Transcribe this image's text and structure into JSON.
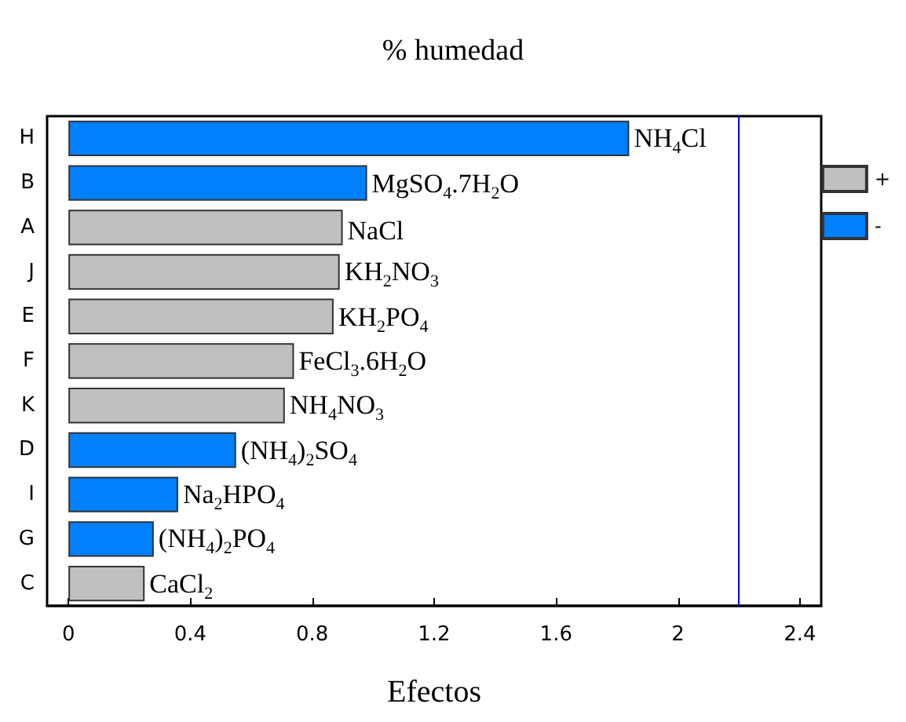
{
  "chart_data": {
    "type": "bar",
    "orientation": "horizontal",
    "title": "% humedad",
    "xlabel": "Efectos",
    "categories": [
      "H",
      "B",
      "A",
      "J",
      "E",
      "F",
      "K",
      "D",
      "I",
      "G",
      "C"
    ],
    "series": [
      {
        "name": "+",
        "color": "#c0c0c0",
        "values": [
          null,
          null,
          0.9,
          0.89,
          0.87,
          0.74,
          0.71,
          null,
          null,
          null,
          0.25
        ]
      },
      {
        "name": "-",
        "color": "#0080ff",
        "values": [
          1.84,
          0.98,
          null,
          null,
          null,
          null,
          null,
          0.55,
          0.36,
          0.28,
          null
        ]
      }
    ],
    "xlim": [
      -0.07,
      2.47
    ],
    "xticks": [
      0,
      0.4,
      0.8,
      1.2,
      1.6,
      2,
      2.4
    ],
    "ref_lines": [
      {
        "axis": "x",
        "value": 2.2,
        "color": "#0000ff"
      }
    ],
    "annotations": [
      {
        "text": "NH$_{4}$Cl",
        "x": 1.84,
        "y": "H"
      },
      {
        "text": "MgSO$_{4}$.7H$_{2}$O",
        "x": 0.98,
        "y": "B"
      },
      {
        "text": "NaCl",
        "x": 0.9,
        "y": "A"
      },
      {
        "text": "KH$_{2}$NO$_{3}$",
        "x": 0.89,
        "y": "J"
      },
      {
        "text": "KH$_{2}$PO$_{4}$",
        "x": 0.87,
        "y": "E"
      },
      {
        "text": "FeCl$_{3}$.6H$_{2}$O",
        "x": 0.74,
        "y": "F"
      },
      {
        "text": "NH$_{4}$NO$_{3}$",
        "x": 0.71,
        "y": "K"
      },
      {
        "text": "(NH$_{4}$)$_{2}$SO$_{4}$",
        "x": 0.55,
        "y": "D"
      },
      {
        "text": "Na$_{2}$HPO$_{4}$",
        "x": 0.36,
        "y": "I"
      },
      {
        "text": "(NH$_{4}$)$_{2}$PO$_{4}$",
        "x": 0.28,
        "y": "G"
      },
      {
        "text": "CaCl$_{2}$",
        "x": 0.25,
        "y": "C"
      }
    ],
    "grid": false,
    "legend": "right"
  }
}
